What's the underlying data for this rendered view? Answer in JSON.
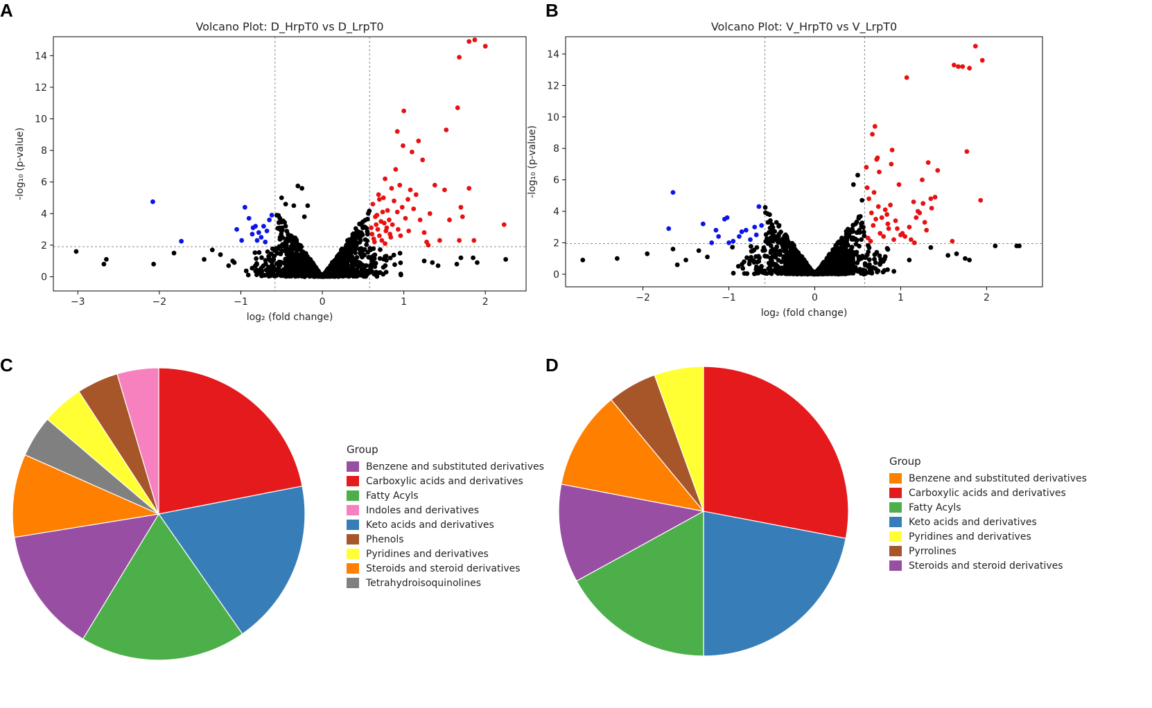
{
  "panels": {
    "a": "A",
    "b": "B",
    "c": "C",
    "d": "D"
  },
  "chart_data": [
    {
      "type": "scatter",
      "panel": "A",
      "title": "Volcano Plot: D_HrpT0 vs D_LrpT0",
      "xlabel": "log₂ (fold change)",
      "ylabel": "-log₁₀ (p-value)",
      "xlim": [
        -3.3,
        2.5
      ],
      "ylim": [
        -0.9,
        15.2
      ],
      "xticks": [
        -3,
        -2,
        -1,
        0,
        1,
        2
      ],
      "xtick_labels": [
        "−3",
        "−2",
        "−1",
        "0",
        "1",
        "2"
      ],
      "yticks": [
        0,
        2,
        4,
        6,
        8,
        10,
        12,
        14
      ],
      "ytick_labels": [
        "0",
        "2",
        "4",
        "6",
        "8",
        "10",
        "12",
        "14"
      ],
      "fc_thresholds": [
        -0.58,
        0.58
      ],
      "p_threshold": 1.9,
      "colors": {
        "down": "#0a15e8",
        "up": "#e81010",
        "ns": "#000000"
      },
      "series": [
        {
          "name": "down",
          "x": [
            -2.08,
            -1.73,
            -0.99,
            -0.85,
            -0.95,
            -0.9,
            -0.82,
            -0.78,
            -0.72,
            -0.68,
            -0.65,
            -0.8,
            -0.75,
            -1.05,
            -0.7,
            -0.86,
            -0.62
          ],
          "y": [
            4.75,
            2.25,
            2.3,
            3.1,
            4.4,
            3.7,
            3.2,
            2.8,
            3.2,
            2.9,
            3.6,
            2.3,
            2.5,
            3.0,
            2.2,
            2.7,
            3.9
          ]
        },
        {
          "name": "up",
          "x": [
            1.8,
            1.87,
            2.0,
            1.68,
            1.66,
            1.0,
            1.52,
            0.92,
            1.18,
            0.99,
            1.1,
            1.23,
            0.77,
            1.8,
            1.5,
            1.38,
            1.7,
            1.56,
            2.23,
            1.86,
            1.68,
            1.28,
            1.44,
            1.72,
            0.6,
            0.65,
            0.7,
            0.75,
            0.8,
            0.62,
            0.68,
            0.72,
            0.85,
            0.9,
            0.95,
            1.05,
            1.15,
            0.63,
            0.66,
            0.74,
            0.78,
            0.82,
            0.88,
            0.93,
            0.98,
            1.02,
            1.08,
            1.12,
            1.2,
            1.25,
            1.32,
            0.64,
            0.7,
            0.76,
            0.84,
            0.92,
            0.61,
            0.67,
            0.73,
            0.79,
            0.86,
            0.96,
            1.06,
            1.3,
            0.69,
            0.77,
            0.83
          ],
          "y": [
            14.9,
            15.0,
            14.6,
            13.9,
            10.7,
            10.5,
            9.3,
            9.2,
            8.6,
            8.3,
            7.9,
            7.4,
            6.2,
            5.6,
            5.5,
            5.8,
            4.4,
            3.6,
            3.3,
            2.3,
            2.3,
            2.2,
            2.3,
            3.8,
            3.1,
            3.8,
            2.6,
            5.0,
            4.2,
            4.6,
            3.0,
            3.5,
            5.6,
            6.8,
            5.8,
            4.9,
            5.2,
            2.4,
            3.3,
            4.1,
            2.9,
            3.6,
            4.8,
            3.0,
            4.4,
            3.7,
            5.5,
            4.3,
            3.6,
            2.8,
            4.0,
            2.2,
            4.9,
            3.4,
            2.5,
            4.1,
            2.7,
            3.9,
            2.3,
            3.1,
            3.3,
            2.6,
            2.9,
            2.0,
            5.2,
            2.1,
            2.7
          ]
        },
        {
          "name": "ns",
          "x": [
            -3.02,
            -2.68,
            -2.65,
            -2.07,
            -1.82,
            -1.45,
            -1.15,
            -1.25,
            -1.35,
            -1.1,
            -1.08,
            2.25,
            1.85,
            1.65,
            1.9,
            1.7,
            1.35,
            1.25,
            1.42,
            -0.3,
            -0.25,
            -0.35,
            -0.18,
            -0.45,
            -0.5,
            -0.22
          ],
          "y": [
            1.6,
            0.8,
            1.1,
            0.8,
            1.5,
            1.1,
            0.7,
            1.4,
            1.7,
            1.0,
            0.9,
            1.1,
            1.2,
            0.8,
            0.9,
            1.2,
            0.9,
            1.0,
            0.7,
            5.75,
            5.6,
            4.5,
            4.5,
            4.6,
            5.0,
            3.8
          ]
        }
      ]
    },
    {
      "type": "scatter",
      "panel": "B",
      "title": "Volcano Plot: V_HrpT0 vs V_LrpT0",
      "xlabel": "log₂ (fold change)",
      "ylabel": "-log₁₀ (p-value)",
      "xlim": [
        -2.9,
        2.65
      ],
      "ylim": [
        -0.8,
        15.1
      ],
      "xticks": [
        -2,
        -1,
        0,
        1,
        2
      ],
      "xtick_labels": [
        "−2",
        "−1",
        "0",
        "1",
        "2"
      ],
      "yticks": [
        0,
        2,
        4,
        6,
        8,
        10,
        12,
        14
      ],
      "ytick_labels": [
        "0",
        "2",
        "4",
        "6",
        "8",
        "10",
        "12",
        "14"
      ],
      "fc_thresholds": [
        -0.58,
        0.58
      ],
      "p_threshold": 1.95,
      "colors": {
        "down": "#0a15e8",
        "up": "#e81010",
        "ns": "#000000"
      },
      "series": [
        {
          "name": "down",
          "x": [
            -1.65,
            -1.7,
            -1.3,
            -1.05,
            -1.02,
            -1.15,
            -1.12,
            -1.2,
            -0.88,
            -0.85,
            -0.65,
            -0.7,
            -0.68,
            -0.95,
            -0.75,
            -0.62,
            -1.0,
            -0.8
          ],
          "y": [
            5.2,
            2.9,
            3.2,
            3.5,
            3.6,
            2.8,
            2.4,
            2.0,
            2.4,
            2.7,
            4.3,
            3.0,
            2.5,
            2.1,
            2.2,
            3.1,
            2.0,
            2.8
          ]
        },
        {
          "name": "up",
          "x": [
            1.87,
            1.95,
            1.72,
            1.62,
            1.8,
            1.67,
            1.07,
            1.77,
            1.93,
            0.7,
            0.67,
            0.9,
            0.72,
            0.75,
            0.89,
            0.98,
            1.25,
            1.32,
            1.43,
            0.61,
            0.63,
            0.66,
            0.69,
            0.74,
            0.78,
            0.82,
            0.86,
            0.94,
            1.02,
            1.1,
            1.15,
            1.2,
            1.28,
            1.35,
            0.62,
            0.68,
            0.76,
            0.84,
            0.92,
            1.05,
            1.18,
            1.3,
            1.4,
            0.65,
            0.71,
            0.8,
            0.88,
            0.96,
            1.12,
            1.22,
            1.36,
            0.6,
            0.73,
            0.85,
            1.0,
            1.16,
            1.26,
            1.6
          ],
          "y": [
            14.5,
            13.6,
            13.2,
            13.3,
            13.1,
            13.2,
            12.5,
            7.8,
            4.7,
            9.4,
            8.9,
            7.9,
            7.3,
            6.5,
            7.0,
            5.7,
            6.0,
            7.1,
            6.6,
            5.5,
            4.8,
            3.9,
            5.2,
            4.3,
            3.6,
            4.1,
            2.9,
            3.4,
            2.6,
            3.0,
            4.6,
            4.0,
            3.3,
            4.8,
            2.3,
            3.1,
            2.6,
            3.8,
            2.2,
            2.4,
            3.6,
            2.8,
            4.9,
            2.1,
            3.5,
            2.4,
            4.4,
            2.9,
            2.2,
            3.9,
            4.2,
            6.8,
            7.4,
            3.2,
            2.5,
            2.0,
            4.5,
            2.1
          ]
        },
        {
          "name": "ns",
          "x": [
            -2.7,
            -2.3,
            -1.95,
            -1.6,
            -1.65,
            -1.5,
            -1.35,
            -1.25,
            2.1,
            2.35,
            2.38,
            1.75,
            1.8,
            1.65,
            1.55,
            1.35,
            1.1,
            0.5,
            0.45,
            0.55
          ],
          "y": [
            0.9,
            1.0,
            1.3,
            0.6,
            1.6,
            0.9,
            1.5,
            1.1,
            1.8,
            1.8,
            1.8,
            1.0,
            0.9,
            1.3,
            1.2,
            1.7,
            0.9,
            6.3,
            5.7,
            4.7
          ]
        }
      ]
    },
    {
      "type": "pie",
      "panel": "C",
      "legend_title": "Group",
      "legend_position": "right",
      "legend": [
        {
          "label": "Benzene and substituted derivatives",
          "color": "#984ea3"
        },
        {
          "label": "Carboxylic acids and derivatives",
          "color": "#e41a1c"
        },
        {
          "label": "Fatty Acyls",
          "color": "#4daf4a"
        },
        {
          "label": "Indoles and derivatives",
          "color": "#f781bf"
        },
        {
          "label": "Keto acids and derivatives",
          "color": "#377eb8"
        },
        {
          "label": "Phenols",
          "color": "#a65628"
        },
        {
          "label": "Pyridines and derivatives",
          "color": "#ffff33"
        },
        {
          "label": "Steroids and steroid derivatives",
          "color": "#ff7f00"
        },
        {
          "label": "Tetrahydroisoquinolines",
          "color": "#808080"
        }
      ],
      "slices": [
        {
          "label": "Carboxylic acids and derivatives",
          "value": 21.5,
          "color": "#e41a1c"
        },
        {
          "label": "Keto acids and derivatives",
          "value": 18.0,
          "color": "#377eb8"
        },
        {
          "label": "Fatty Acyls",
          "value": 18.0,
          "color": "#4daf4a"
        },
        {
          "label": "Benzene and substituted derivatives",
          "value": 13.5,
          "color": "#984ea3"
        },
        {
          "label": "Steroids and steroid derivatives",
          "value": 9.0,
          "color": "#ff7f00"
        },
        {
          "label": "Tetrahydroisoquinolines",
          "value": 4.5,
          "color": "#808080"
        },
        {
          "label": "Pyridines and derivatives",
          "value": 4.5,
          "color": "#ffff33"
        },
        {
          "label": "Phenols",
          "value": 4.5,
          "color": "#a65628"
        },
        {
          "label": "Indoles and derivatives",
          "value": 4.5,
          "color": "#f781bf"
        }
      ]
    },
    {
      "type": "pie",
      "panel": "D",
      "legend_title": "Group",
      "legend_position": "right",
      "legend": [
        {
          "label": "Benzene and substituted derivatives",
          "color": "#ff7f00"
        },
        {
          "label": "Carboxylic acids and derivatives",
          "color": "#e41a1c"
        },
        {
          "label": "Fatty Acyls",
          "color": "#4daf4a"
        },
        {
          "label": "Keto acids and derivatives",
          "color": "#377eb8"
        },
        {
          "label": "Pyridines and derivatives",
          "color": "#ffff33"
        },
        {
          "label": "Pyrrolines",
          "color": "#a65628"
        },
        {
          "label": "Steroids and steroid derivatives",
          "color": "#984ea3"
        }
      ],
      "slices": [
        {
          "label": "Carboxylic acids and derivatives",
          "value": 28.0,
          "color": "#e41a1c"
        },
        {
          "label": "Keto acids and derivatives",
          "value": 22.0,
          "color": "#377eb8"
        },
        {
          "label": "Fatty Acyls",
          "value": 17.0,
          "color": "#4daf4a"
        },
        {
          "label": "Steroids and steroid derivatives",
          "value": 11.0,
          "color": "#984ea3"
        },
        {
          "label": "Benzene and substituted derivatives",
          "value": 11.0,
          "color": "#ff7f00"
        },
        {
          "label": "Pyrrolines",
          "value": 5.5,
          "color": "#a65628"
        },
        {
          "label": "Pyridines and derivatives",
          "value": 5.5,
          "color": "#ffff33"
        }
      ]
    }
  ]
}
